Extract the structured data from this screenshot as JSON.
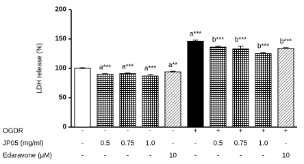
{
  "chart_data": {
    "type": "bar",
    "y_label": "LDH release (%)",
    "ylim": [
      0,
      200
    ],
    "yticks": [
      0,
      50,
      100,
      150,
      200
    ],
    "values": [
      100,
      90,
      91,
      87,
      94,
      146,
      136,
      133,
      125,
      134
    ],
    "errors": [
      1,
      1,
      1,
      2,
      1,
      2,
      2,
      5,
      2,
      1
    ],
    "annotations": [
      null,
      "a***",
      "a***",
      "a***",
      "a**",
      "a***",
      "b***",
      "b***",
      "b***",
      "b***"
    ],
    "patterns": [
      "white",
      "grid",
      "grid",
      "grid",
      "hatch",
      "black",
      "grid",
      "grid",
      "grid",
      "hatch"
    ],
    "treatments": [
      {
        "label": "OGDR",
        "values": [
          "-",
          "-",
          "-",
          "-",
          "-",
          "+",
          "+",
          "+",
          "+",
          "+"
        ]
      },
      {
        "label": "JP05 (mg/ml)",
        "values": [
          "-",
          "0.5",
          "0.75",
          "1.0",
          "-",
          "-",
          "0.5",
          "0.75",
          "1.0",
          "-"
        ]
      },
      {
        "label": "Edaravone (μM)",
        "values": [
          "-",
          "-",
          "-",
          "-",
          "10",
          "-",
          "-",
          "-",
          "-",
          "10"
        ]
      }
    ]
  }
}
